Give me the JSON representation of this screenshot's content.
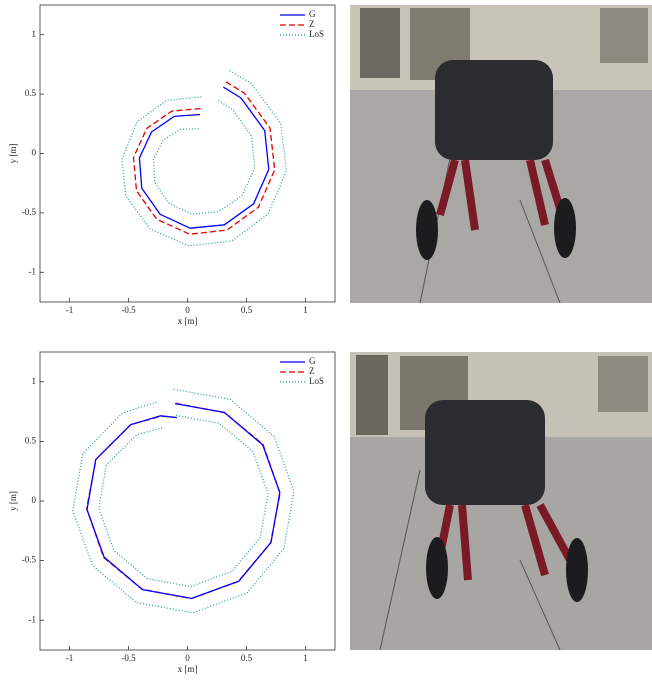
{
  "chart_data": [
    {
      "type": "line",
      "xlabel": "x [m]",
      "ylabel": "y [m]",
      "xlim": [
        -1.25,
        1.25
      ],
      "ylim": [
        -1.25,
        1.25
      ],
      "xticks": [
        -1,
        -0.5,
        0,
        0.5,
        1
      ],
      "yticks": [
        -1,
        -0.5,
        0,
        0.5,
        1
      ],
      "legend": "upper right",
      "series": [
        {
          "name": "G",
          "color": "#0000ff",
          "style": "solid",
          "x": [
            0.106,
            -0.113,
            -0.304,
            -0.408,
            -0.387,
            -0.232,
            0.022,
            0.313,
            0.56,
            0.689,
            0.654,
            0.453,
            0.303
          ],
          "values": [
            0.328,
            0.312,
            0.182,
            -0.038,
            -0.293,
            -0.512,
            -0.629,
            -0.6,
            -0.423,
            -0.134,
            0.193,
            0.467,
            0.559
          ]
        },
        {
          "name": "Z",
          "color": "#e00000",
          "style": "dashed",
          "x": [
            0.11,
            -0.134,
            -0.345,
            -0.458,
            -0.432,
            -0.261,
            0.018,
            0.334,
            0.601,
            0.739,
            0.699,
            0.482,
            0.32
          ],
          "values": [
            0.378,
            0.357,
            0.211,
            -0.034,
            -0.314,
            -0.553,
            -0.679,
            -0.645,
            -0.452,
            -0.138,
            0.214,
            0.508,
            0.606
          ]
        },
        {
          "name": "LoS",
          "color": "#1a9a9a",
          "style": "dotted",
          "x": [
            0.096,
            -0.062,
            -0.206,
            -0.288,
            -0.278,
            -0.163,
            0.032,
            0.262,
            0.462,
            0.569,
            0.545,
            0.384,
            0.262,
            null,
            0.119,
            -0.176,
            -0.427,
            -0.557,
            -0.523,
            -0.318,
            0.009,
            0.376,
            0.683,
            0.838,
            0.79,
            0.539,
            0.354
          ],
          "values": [
            0.208,
            0.203,
            0.113,
            -0.048,
            -0.242,
            -0.414,
            -0.509,
            -0.491,
            -0.354,
            -0.124,
            0.142,
            0.369,
            0.446,
            null,
            0.477,
            0.448,
            0.268,
            -0.051,
            -0.356,
            -0.635,
            -0.778,
            -0.736,
            -0.509,
            -0.147,
            0.256,
            0.59,
            0.7
          ]
        }
      ]
    },
    {
      "type": "line",
      "xlabel": "x [m]",
      "ylabel": "y [m]",
      "xlim": [
        -1.25,
        1.25
      ],
      "ylim": [
        -1.25,
        1.25
      ],
      "xticks": [
        -1,
        -0.5,
        0,
        0.5,
        1
      ],
      "yticks": [
        -1,
        -0.5,
        0,
        0.5,
        1
      ],
      "legend": "upper right",
      "series": [
        {
          "name": "G",
          "color": "#0000ff",
          "style": "solid",
          "x": [
            -0.106,
            0.312,
            0.637,
            0.782,
            0.708,
            0.436,
            0.036,
            -0.382,
            -0.707,
            -0.852,
            -0.778,
            -0.483,
            -0.227,
            -0.09
          ],
          "values": [
            0.817,
            0.743,
            0.471,
            0.071,
            -0.347,
            -0.672,
            -0.817,
            -0.743,
            -0.471,
            -0.071,
            0.347,
            0.639,
            0.715,
            0.7
          ]
        },
        {
          "name": "Z",
          "color": "#e00000",
          "style": "dashed",
          "x": [
            -0.1,
            0.315,
            0.64,
            0.785,
            0.705,
            0.43,
            0.03,
            -0.385,
            -0.71,
            -0.855,
            -0.775,
            -0.48,
            -0.22,
            -0.09
          ],
          "values": [
            0.82,
            0.74,
            0.475,
            0.065,
            -0.35,
            -0.675,
            -0.82,
            -0.74,
            -0.475,
            -0.065,
            0.35,
            0.642,
            0.712,
            0.7
          ]
        },
        {
          "name": "LoS",
          "color": "#1a9a9a",
          "style": "dotted",
          "x": [
            -0.097,
            0.27,
            0.555,
            0.682,
            0.617,
            0.379,
            0.027,
            -0.34,
            -0.625,
            -0.752,
            -0.687,
            -0.426,
            -0.201,
            null,
            -0.116,
            0.363,
            0.735,
            0.902,
            0.817,
            0.505,
            0.046,
            -0.433,
            -0.805,
            -0.972,
            -0.887,
            -0.552,
            -0.258
          ],
          "values": [
            0.717,
            0.652,
            0.414,
            0.062,
            -0.305,
            -0.59,
            -0.717,
            -0.652,
            -0.414,
            -0.062,
            0.305,
            0.557,
            0.618,
            null,
            0.937,
            0.852,
            0.54,
            0.081,
            -0.398,
            -0.77,
            -0.937,
            -0.852,
            -0.54,
            -0.081,
            0.398,
            0.737,
            0.831
          ]
        }
      ]
    }
  ]
}
